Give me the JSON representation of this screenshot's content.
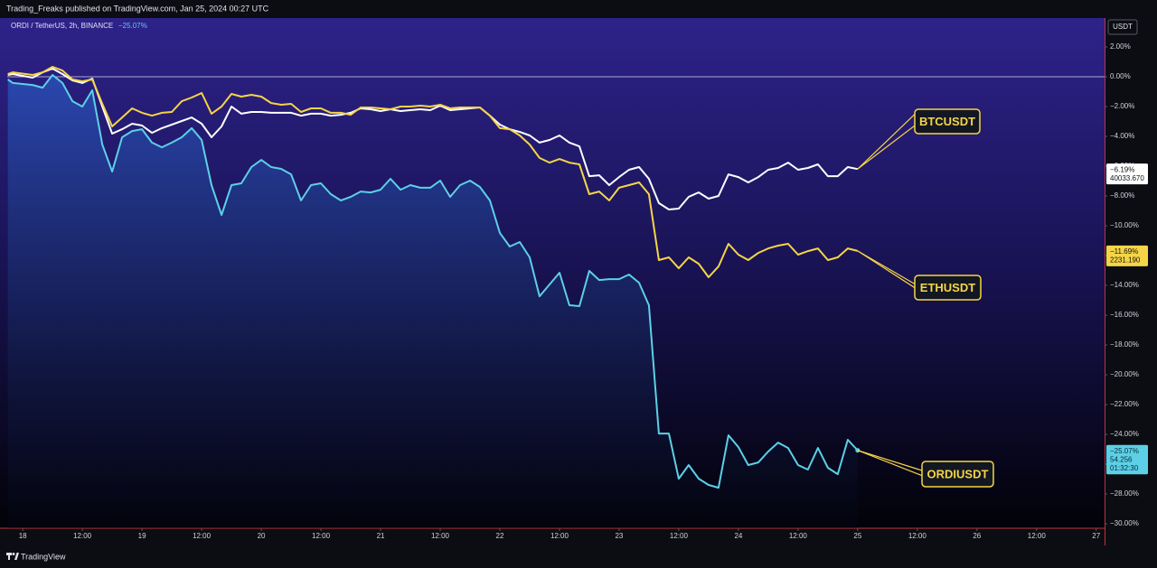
{
  "header": {
    "publisher": "Trading_Freaks published on TradingView.com, Jan 25, 2024 00:27 UTC",
    "symbol": "ORDI / TetherUS, 2h, BINANCE",
    "change": "−25.07%",
    "currency": "USDT",
    "footer": "TradingView"
  },
  "chart_data": {
    "type": "line",
    "x": [
      17.875,
      17.917,
      18.083,
      18.167,
      18.25,
      18.333,
      18.417,
      18.5,
      18.583,
      18.667,
      18.75,
      18.833,
      18.917,
      19,
      19.083,
      19.167,
      19.25,
      19.333,
      19.417,
      19.5,
      19.583,
      19.667,
      19.75,
      19.833,
      19.917,
      20,
      20.083,
      20.167,
      20.25,
      20.333,
      20.417,
      20.5,
      20.583,
      20.667,
      20.75,
      20.833,
      20.917,
      21,
      21.083,
      21.167,
      21.25,
      21.333,
      21.417,
      21.5,
      21.583,
      21.667,
      21.75,
      21.833,
      21.917,
      22,
      22.083,
      22.167,
      22.25,
      22.333,
      22.417,
      22.5,
      22.583,
      22.667,
      22.75,
      22.833,
      22.917,
      23,
      23.083,
      23.167,
      23.25,
      23.333,
      23.417,
      23.5,
      23.583,
      23.667,
      23.75,
      23.833,
      23.917,
      24,
      24.083,
      24.167,
      24.25,
      24.333,
      24.417,
      24.5,
      24.583,
      24.667,
      24.75,
      24.833,
      24.917,
      25
    ],
    "series": [
      {
        "name": "ORDIUSDT",
        "color": "#5cd0e6",
        "last_value_label": "−25.07%",
        "price_label": "54.256",
        "countdown": "01:32:30",
        "values": [
          -0.18,
          -0.42,
          -0.55,
          -0.73,
          0.12,
          -0.42,
          -1.64,
          -2.0,
          -0.91,
          -4.55,
          -6.36,
          -4.06,
          -3.64,
          -3.52,
          -4.42,
          -4.73,
          -4.42,
          -4.06,
          -3.45,
          -4.24,
          -7.27,
          -9.27,
          -7.27,
          -7.15,
          -6.06,
          -5.58,
          -6.06,
          -6.18,
          -6.55,
          -8.3,
          -7.27,
          -7.15,
          -7.88,
          -8.3,
          -8.06,
          -7.7,
          -7.76,
          -7.58,
          -6.85,
          -7.58,
          -7.27,
          -7.45,
          -7.45,
          -6.97,
          -8.06,
          -7.27,
          -6.97,
          -7.39,
          -8.3,
          -10.48,
          -11.39,
          -11.09,
          -12.12,
          -14.73,
          -13.94,
          -13.15,
          -15.33,
          -15.39,
          -13.03,
          -13.64,
          -13.58,
          -13.58,
          -13.27,
          -13.82,
          -15.33,
          -23.94,
          -23.94,
          -26.97,
          -26.06,
          -26.97,
          -27.39,
          -27.58,
          -24.06,
          -24.85,
          -26.06,
          -25.88,
          -25.15,
          -24.55,
          -24.91,
          -26.06,
          -26.36,
          -24.91,
          -26.24,
          -26.67,
          -24.36,
          -25.07
        ]
      },
      {
        "name": "BTCUSDT",
        "color": "#ffffff",
        "last_value_label": "−6.19%",
        "price_label": "40033.670",
        "values": [
          0.12,
          0.18,
          -0.06,
          0.3,
          0.55,
          0.18,
          -0.24,
          -0.42,
          -0.12,
          -2.0,
          -3.82,
          -3.52,
          -3.15,
          -3.27,
          -3.76,
          -3.45,
          -3.21,
          -2.97,
          -2.73,
          -3.15,
          -4.06,
          -3.33,
          -2.0,
          -2.48,
          -2.36,
          -2.36,
          -2.42,
          -2.42,
          -2.42,
          -2.61,
          -2.48,
          -2.48,
          -2.61,
          -2.55,
          -2.42,
          -2.12,
          -2.18,
          -2.3,
          -2.18,
          -2.3,
          -2.24,
          -2.18,
          -2.24,
          -1.94,
          -2.24,
          -2.18,
          -2.12,
          -2.06,
          -2.61,
          -3.21,
          -3.52,
          -3.7,
          -3.94,
          -4.42,
          -4.24,
          -3.94,
          -4.42,
          -4.67,
          -6.67,
          -6.61,
          -7.27,
          -6.73,
          -6.24,
          -6.06,
          -6.85,
          -8.48,
          -8.91,
          -8.85,
          -8.06,
          -7.76,
          -8.18,
          -8.0,
          -6.55,
          -6.73,
          -7.09,
          -6.73,
          -6.24,
          -6.12,
          -5.76,
          -6.24,
          -6.12,
          -5.88,
          -6.67,
          -6.67,
          -6.06,
          -6.19
        ]
      },
      {
        "name": "ETHUSDT",
        "color": "#f5d547",
        "last_value_label": "−11.69%",
        "price_label": "2231.190",
        "values": [
          0.18,
          0.3,
          0.12,
          0.3,
          0.67,
          0.42,
          -0.18,
          -0.3,
          -0.18,
          -1.82,
          -3.33,
          -2.73,
          -2.12,
          -2.42,
          -2.61,
          -2.42,
          -2.36,
          -1.64,
          -1.39,
          -1.09,
          -2.48,
          -2.0,
          -1.15,
          -1.33,
          -1.21,
          -1.33,
          -1.76,
          -1.88,
          -1.82,
          -2.36,
          -2.12,
          -2.12,
          -2.42,
          -2.42,
          -2.55,
          -2.06,
          -2.06,
          -2.12,
          -2.18,
          -2.0,
          -2.0,
          -1.94,
          -2.0,
          -1.88,
          -2.12,
          -2.06,
          -2.06,
          -2.06,
          -2.61,
          -3.45,
          -3.52,
          -3.94,
          -4.55,
          -5.45,
          -5.76,
          -5.52,
          -5.76,
          -5.88,
          -7.88,
          -7.7,
          -8.3,
          -7.45,
          -7.27,
          -7.09,
          -7.88,
          -12.3,
          -12.12,
          -12.85,
          -12.12,
          -12.55,
          -13.45,
          -12.73,
          -11.21,
          -11.94,
          -12.3,
          -11.82,
          -11.52,
          -11.33,
          -11.21,
          -11.94,
          -11.7,
          -11.52,
          -12.3,
          -12.12,
          -11.52,
          -11.69
        ]
      }
    ],
    "xlim": [
      17.87,
      27.07
    ],
    "xticks": [
      {
        "value": 18,
        "label": "18"
      },
      {
        "value": 18.5,
        "label": "12:00"
      },
      {
        "value": 19,
        "label": "19"
      },
      {
        "value": 19.5,
        "label": "12:00"
      },
      {
        "value": 20,
        "label": "20"
      },
      {
        "value": 20.5,
        "label": "12:00"
      },
      {
        "value": 21,
        "label": "21"
      },
      {
        "value": 21.5,
        "label": "12:00"
      },
      {
        "value": 22,
        "label": "22"
      },
      {
        "value": 22.5,
        "label": "12:00"
      },
      {
        "value": 23,
        "label": "23"
      },
      {
        "value": 23.5,
        "label": "12:00"
      },
      {
        "value": 24,
        "label": "24"
      },
      {
        "value": 24.5,
        "label": "12:00"
      },
      {
        "value": 25,
        "label": "25"
      },
      {
        "value": 25.5,
        "label": "12:00"
      },
      {
        "value": 26,
        "label": "26"
      },
      {
        "value": 26.5,
        "label": "12:00"
      },
      {
        "value": 27,
        "label": "27"
      }
    ],
    "ylim": [
      -30.3,
      3.94
    ],
    "yticks": [
      {
        "value": 2,
        "label": "2.00%"
      },
      {
        "value": 0,
        "label": "0.00%"
      },
      {
        "value": -2,
        "label": "−2.00%"
      },
      {
        "value": -4,
        "label": "−4.00%"
      },
      {
        "value": -6,
        "label": "−6.00%"
      },
      {
        "value": -8,
        "label": "−8.00%"
      },
      {
        "value": -10,
        "label": "−10.00%"
      },
      {
        "value": -12,
        "label": "−12.00%"
      },
      {
        "value": -14,
        "label": "−14.00%"
      },
      {
        "value": -16,
        "label": "−16.00%"
      },
      {
        "value": -18,
        "label": "−18.00%"
      },
      {
        "value": -20,
        "label": "−20.00%"
      },
      {
        "value": -22,
        "label": "−22.00%"
      },
      {
        "value": -24,
        "label": "−24.00%"
      },
      {
        "value": -26,
        "label": "−26.00%"
      },
      {
        "value": -28,
        "label": "−28.00%"
      },
      {
        "value": -30,
        "label": "−30.00%"
      }
    ],
    "baseline": 0,
    "area_series": 0
  }
}
